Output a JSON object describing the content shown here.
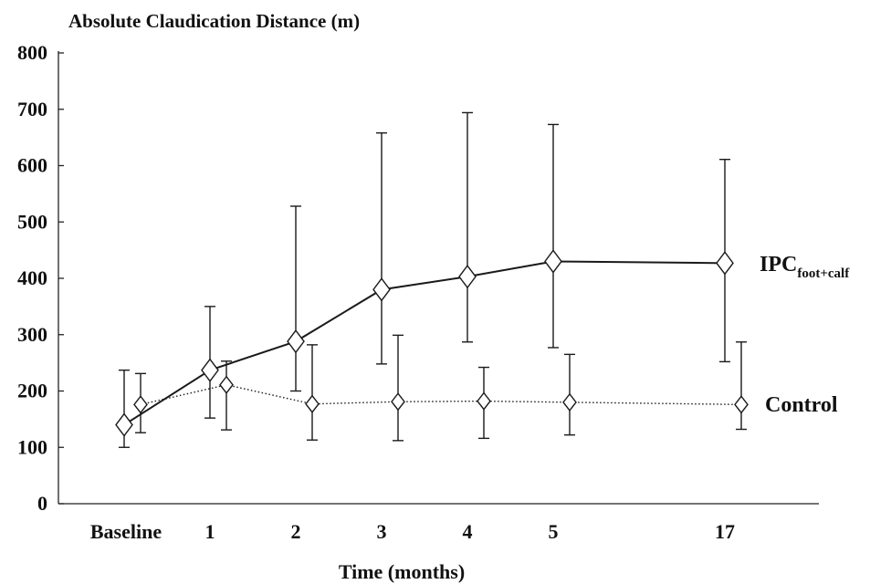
{
  "chart_data": {
    "type": "line",
    "title": "Absolute Claudication Distance (m)",
    "xlabel": "Time (months)",
    "ylabel": "",
    "categories": [
      "Baseline",
      "1",
      "2",
      "3",
      "4",
      "5",
      "17"
    ],
    "ylim": [
      0,
      800
    ],
    "yticks": [
      "0",
      "100",
      "200",
      "300",
      "400",
      "500",
      "600",
      "700",
      "800"
    ],
    "grid": false,
    "series": [
      {
        "name": "IPC",
        "name_subscript": "foot+calf",
        "line_style": "solid",
        "marker": "open-diamond",
        "values": [
          140,
          237,
          288,
          380,
          403,
          430,
          427
        ],
        "error_low": [
          100,
          152,
          200,
          248,
          287,
          277,
          252
        ],
        "error_high": [
          237,
          350,
          528,
          658,
          694,
          673,
          611
        ]
      },
      {
        "name": "Control",
        "line_style": "dotted",
        "marker": "open-diamond",
        "values": [
          176,
          211,
          177,
          181,
          182,
          180,
          176
        ],
        "error_low": [
          126,
          131,
          113,
          112,
          116,
          122,
          132
        ],
        "error_high": [
          231,
          253,
          282,
          299,
          242,
          265,
          287
        ]
      }
    ]
  }
}
